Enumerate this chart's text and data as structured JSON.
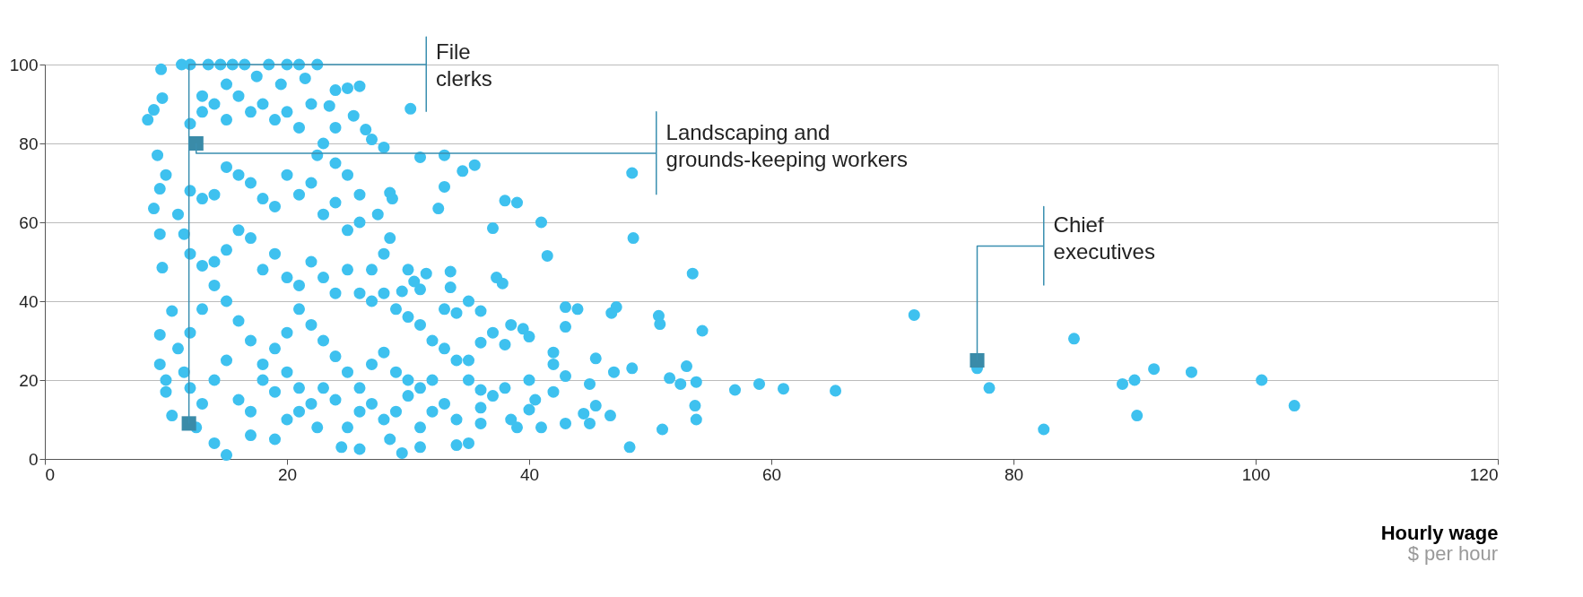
{
  "chart_data": {
    "type": "scatter",
    "xlabel": "Hourly wage",
    "xlim": [
      0,
      120
    ],
    "ylim": [
      0,
      100
    ],
    "xticks": [
      0,
      20,
      40,
      60,
      80,
      100,
      120
    ],
    "yticks": [
      0,
      20,
      40,
      60,
      80,
      100
    ],
    "grid": "y",
    "annotations": [
      {
        "text": "File clerks",
        "x": 11.9,
        "y": 9
      },
      {
        "text": "Landscaping and grounds-keeping workers",
        "x": 12.5,
        "y": 80
      },
      {
        "text": "Chief executives",
        "x": 77,
        "y": 25
      },
      "$ per hour"
    ],
    "series": [
      {
        "color": "#3ec1ef",
        "marker": "circle",
        "x": [
          71.8,
          85,
          77,
          78,
          82.5,
          89,
          90,
          90.2,
          91.6,
          94.7,
          100.5,
          103.2,
          57,
          59,
          61,
          65.3,
          53.5,
          54.3,
          50.7,
          50.8,
          51.6,
          52.5,
          53,
          53.8,
          53.7,
          53.8,
          51,
          48.5,
          48.6,
          48.5,
          48.3,
          47.2,
          46.8,
          47,
          46.7,
          45.5,
          45,
          45.5,
          44,
          43,
          43,
          42,
          42,
          43,
          44.5,
          41.5,
          41,
          38,
          39,
          37,
          37.3,
          37.8,
          36,
          35,
          34.5,
          35.5,
          33,
          31,
          30.2,
          33,
          32.5,
          31.5,
          33.5,
          33.5,
          31,
          30,
          30.5,
          33,
          34,
          37,
          38.5,
          39.5,
          40,
          38,
          36,
          35,
          35,
          36,
          38,
          40,
          40.5,
          42,
          40,
          38.5,
          36,
          35,
          34,
          31,
          29.5,
          28.5,
          26,
          24.5,
          22.5,
          21,
          20,
          19,
          17,
          15,
          14,
          12.5,
          10.5,
          10,
          10,
          9.5,
          10.5,
          9.5,
          9.7,
          9.5,
          9,
          9.5,
          10,
          9.3,
          8.5,
          9,
          9.7,
          9.6,
          11.3,
          12,
          13.5,
          14.5,
          15.5,
          16.5,
          18.5,
          20,
          21,
          22.5,
          21.5,
          19.5,
          17.5,
          15,
          13,
          12,
          13,
          14,
          15,
          16,
          17,
          18,
          19,
          20,
          21,
          22,
          23.5,
          24,
          25,
          26,
          26.5,
          25.5,
          24,
          23,
          22.5,
          24,
          25,
          27,
          28,
          26,
          27.5,
          28.5,
          28.5,
          28.7,
          28,
          29.5,
          27,
          26,
          25,
          24,
          23,
          22,
          21,
          20,
          19,
          18,
          17,
          16,
          15,
          14,
          13,
          12,
          11,
          11.5,
          12,
          13,
          14,
          15,
          16,
          17,
          18,
          19,
          20,
          21,
          22,
          23,
          24,
          25,
          26,
          27,
          28,
          29,
          30,
          31,
          32,
          33,
          34,
          32,
          31,
          30,
          29,
          28,
          27,
          26,
          25,
          24,
          23,
          22,
          21,
          20,
          19,
          18,
          17,
          16,
          15,
          14,
          13,
          12,
          11,
          11.5,
          12,
          13,
          14,
          15,
          16,
          17,
          18,
          19,
          20,
          21,
          22,
          23,
          24,
          25,
          26,
          27,
          28,
          29,
          30,
          31,
          32,
          33,
          34,
          36,
          37,
          39,
          41,
          43,
          45
        ],
        "values": [
          36.5,
          30.5,
          23,
          18,
          7.5,
          19,
          20,
          11,
          22.8,
          22,
          20,
          13.5,
          17.5,
          19,
          17.8,
          17.3,
          47,
          32.5,
          36.3,
          34.2,
          20.5,
          19,
          23.5,
          19.5,
          13.5,
          10,
          7.5,
          72.5,
          56,
          23,
          3,
          38.5,
          37,
          22,
          11,
          25.5,
          19,
          13.5,
          38,
          33.5,
          38.5,
          27,
          24,
          21,
          11.5,
          51.5,
          60,
          65.5,
          65,
          58.5,
          46,
          44.5,
          37.5,
          40,
          73,
          74.5,
          77,
          76.5,
          88.8,
          69,
          63.5,
          47,
          47.5,
          43.5,
          43,
          48,
          45,
          38,
          37,
          32,
          34,
          33,
          31,
          29,
          29.5,
          25,
          20,
          17.5,
          18,
          20,
          15,
          17,
          12.5,
          10,
          9,
          4,
          3.5,
          3,
          1.5,
          5,
          2.5,
          3,
          8,
          12,
          10,
          5,
          6,
          1,
          4,
          8,
          11,
          17,
          20,
          24,
          37.5,
          31.5,
          48.5,
          57,
          63.5,
          68.5,
          72,
          77,
          86,
          88.5,
          91.5,
          98.8,
          100,
          100,
          100,
          100,
          100,
          100,
          100,
          100,
          100,
          100,
          96.5,
          95,
          97,
          95,
          92,
          85,
          88,
          90,
          86,
          92,
          88,
          90,
          86,
          88,
          84,
          90,
          89.5,
          93.5,
          94,
          94.5,
          83.5,
          87,
          84,
          80,
          77,
          75,
          72,
          81,
          79,
          67,
          62,
          56,
          67.5,
          66,
          52,
          42.5,
          48,
          60,
          58,
          65,
          62,
          70,
          67,
          72,
          64,
          66,
          70,
          72,
          74,
          67,
          66,
          68,
          62,
          57,
          52,
          49,
          50,
          53,
          58,
          56,
          48,
          52,
          46,
          44,
          50,
          46,
          42,
          48,
          42,
          40,
          42,
          38,
          36,
          34,
          30,
          28,
          25,
          20,
          18,
          16,
          12,
          10,
          14,
          18,
          22,
          26,
          30,
          34,
          38,
          32,
          28,
          24,
          30,
          35,
          40,
          44,
          38,
          32,
          28,
          22,
          18,
          14,
          20,
          25,
          15,
          12,
          20,
          17,
          22,
          18,
          14,
          18,
          15,
          8,
          12,
          24,
          27,
          22,
          20,
          8,
          12,
          14,
          10,
          13,
          16,
          8,
          8,
          9,
          9
        ]
      },
      {
        "color": "#3a8ba8",
        "marker": "square",
        "x": [
          11.9,
          12.5,
          77
        ],
        "values": [
          9,
          80,
          25
        ]
      }
    ]
  }
}
